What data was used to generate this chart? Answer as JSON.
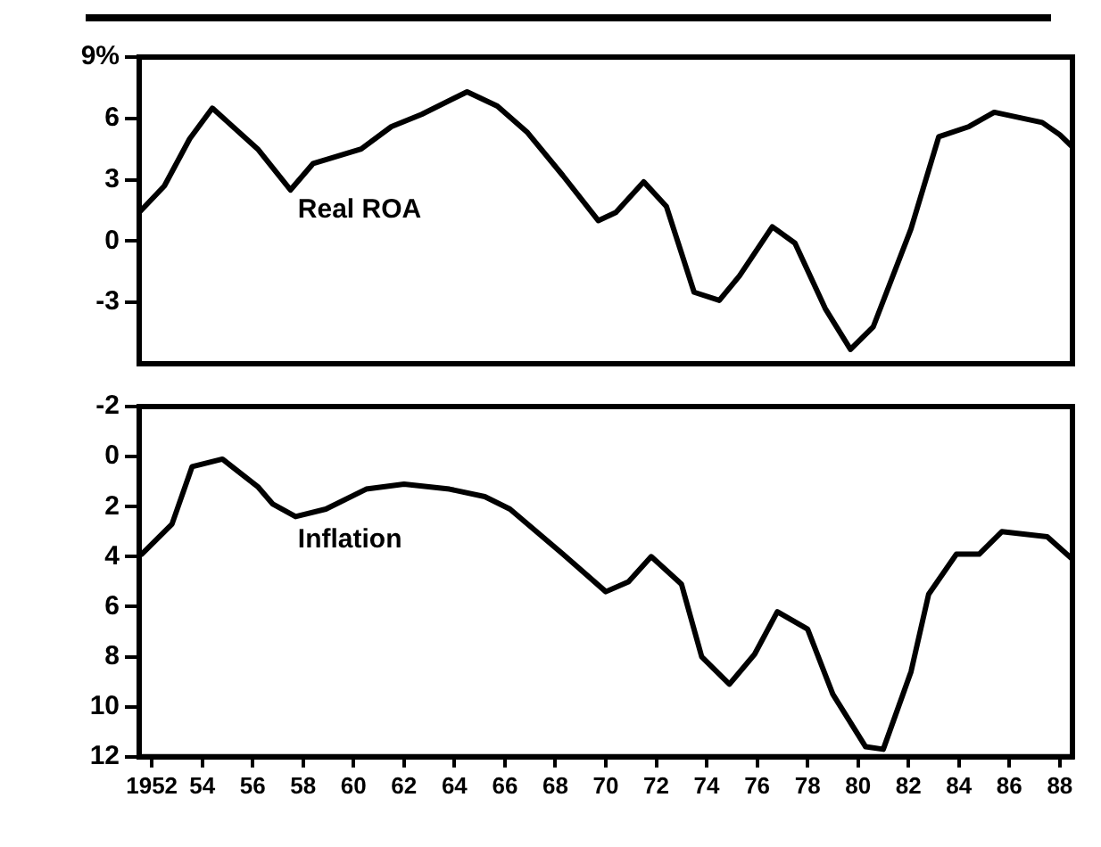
{
  "chart_data": [
    {
      "type": "line",
      "xlim": [
        1951.5,
        1988.5
      ],
      "ylim": [
        -6,
        9
      ],
      "yticks": [
        {
          "value": 9,
          "label": "9%"
        },
        6,
        3,
        {
          "value": 0,
          "label": "0"
        },
        -3
      ],
      "tick_labels": "y",
      "grid": false,
      "legend": false,
      "marker": "none",
      "line_style": "solid",
      "series": [
        {
          "name": "Real ROA",
          "color": "#000000",
          "x": [
            1951.5,
            1952.5,
            1953.5,
            1954.4,
            1956.2,
            1957.5,
            1958.4,
            1960.3,
            1961.5,
            1962.7,
            1964.5,
            1965.7,
            1966.9,
            1968.3,
            1969.7,
            1970.4,
            1971.5,
            1972.4,
            1973.5,
            1974.5,
            1975.3,
            1976.6,
            1977.5,
            1978.7,
            1979.7,
            1980.6,
            1982.1,
            1983.2,
            1984.4,
            1985.4,
            1987.3,
            1988.0,
            1988.5
          ],
          "values": [
            1.4,
            2.7,
            5.0,
            6.5,
            4.5,
            2.5,
            3.8,
            4.5,
            5.6,
            6.2,
            7.3,
            6.6,
            5.3,
            3.2,
            1.0,
            1.4,
            2.9,
            1.7,
            -2.5,
            -2.9,
            -1.7,
            0.7,
            -0.1,
            -3.3,
            -5.3,
            -4.2,
            0.6,
            5.1,
            5.6,
            6.3,
            5.8,
            5.2,
            4.6
          ]
        }
      ]
    },
    {
      "type": "line",
      "xlim": [
        1951.5,
        1988.5
      ],
      "ylim": [
        12,
        -2
      ],
      "yticks": [
        -2,
        0,
        2,
        4,
        6,
        8,
        10,
        12
      ],
      "xticks": [
        {
          "value": 1952,
          "label": "1952"
        },
        {
          "value": 1954,
          "label": "54"
        },
        {
          "value": 1956,
          "label": "56"
        },
        {
          "value": 1958,
          "label": "58"
        },
        {
          "value": 1960,
          "label": "60"
        },
        {
          "value": 1962,
          "label": "62"
        },
        {
          "value": 1964,
          "label": "64"
        },
        {
          "value": 1966,
          "label": "66"
        },
        {
          "value": 1968,
          "label": "68"
        },
        {
          "value": 1970,
          "label": "70"
        },
        {
          "value": 1972,
          "label": "72"
        },
        {
          "value": 1974,
          "label": "74"
        },
        {
          "value": 1976,
          "label": "76"
        },
        {
          "value": 1978,
          "label": "78"
        },
        {
          "value": 1980,
          "label": "80"
        },
        {
          "value": 1982,
          "label": "82"
        },
        {
          "value": 1984,
          "label": "84"
        },
        {
          "value": 1986,
          "label": "86"
        },
        {
          "value": 1988,
          "label": "88"
        }
      ],
      "grid": false,
      "legend": false,
      "marker": "none",
      "line_style": "solid",
      "series": [
        {
          "name": "Inflation",
          "color": "#000000",
          "x": [
            1951.6,
            1952.8,
            1953.6,
            1954.8,
            1956.2,
            1956.8,
            1957.7,
            1958.9,
            1960.5,
            1962.0,
            1963.8,
            1965.2,
            1966.2,
            1968.3,
            1970.0,
            1970.9,
            1971.8,
            1973.0,
            1973.8,
            1974.9,
            1975.9,
            1976.8,
            1978.0,
            1979.0,
            1980.3,
            1981.0,
            1982.1,
            1982.8,
            1983.9,
            1984.8,
            1985.7,
            1987.5,
            1988.5
          ],
          "values": [
            3.9,
            2.7,
            0.4,
            0.1,
            1.2,
            1.9,
            2.4,
            2.1,
            1.3,
            1.1,
            1.3,
            1.6,
            2.1,
            3.9,
            5.4,
            5.0,
            4.0,
            5.1,
            8.0,
            9.1,
            7.9,
            6.2,
            6.9,
            9.5,
            11.6,
            11.7,
            8.6,
            5.5,
            3.9,
            3.9,
            3.0,
            3.2,
            4.1
          ]
        }
      ]
    }
  ]
}
